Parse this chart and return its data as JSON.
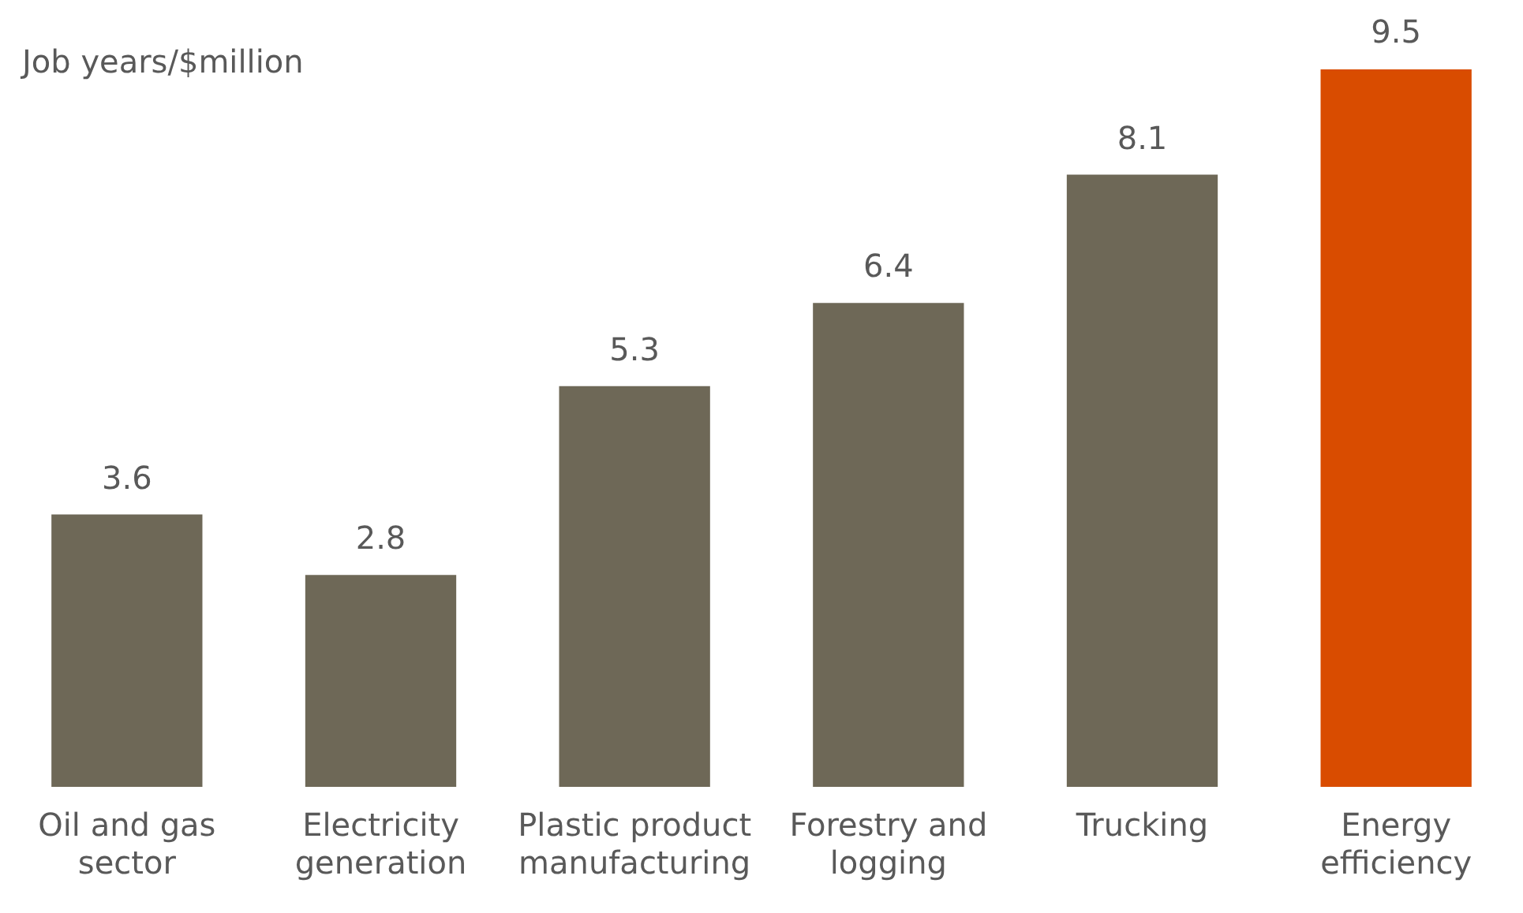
{
  "chart_data": {
    "type": "bar",
    "ylabel": "Job years/$million",
    "categories": [
      "Oil and gas sector",
      "Electricity generation",
      "Plastic product manufacturing",
      "Forestry and logging",
      "Trucking",
      "Energy efficiency"
    ],
    "values": [
      3.6,
      2.8,
      5.3,
      6.4,
      8.1,
      9.5
    ],
    "colors": [
      "#6e6857",
      "#6e6857",
      "#6e6857",
      "#6e6857",
      "#6e6857",
      "#d94c00"
    ],
    "ylim": [
      0,
      9.5
    ],
    "data_labels": true,
    "legend": false
  }
}
